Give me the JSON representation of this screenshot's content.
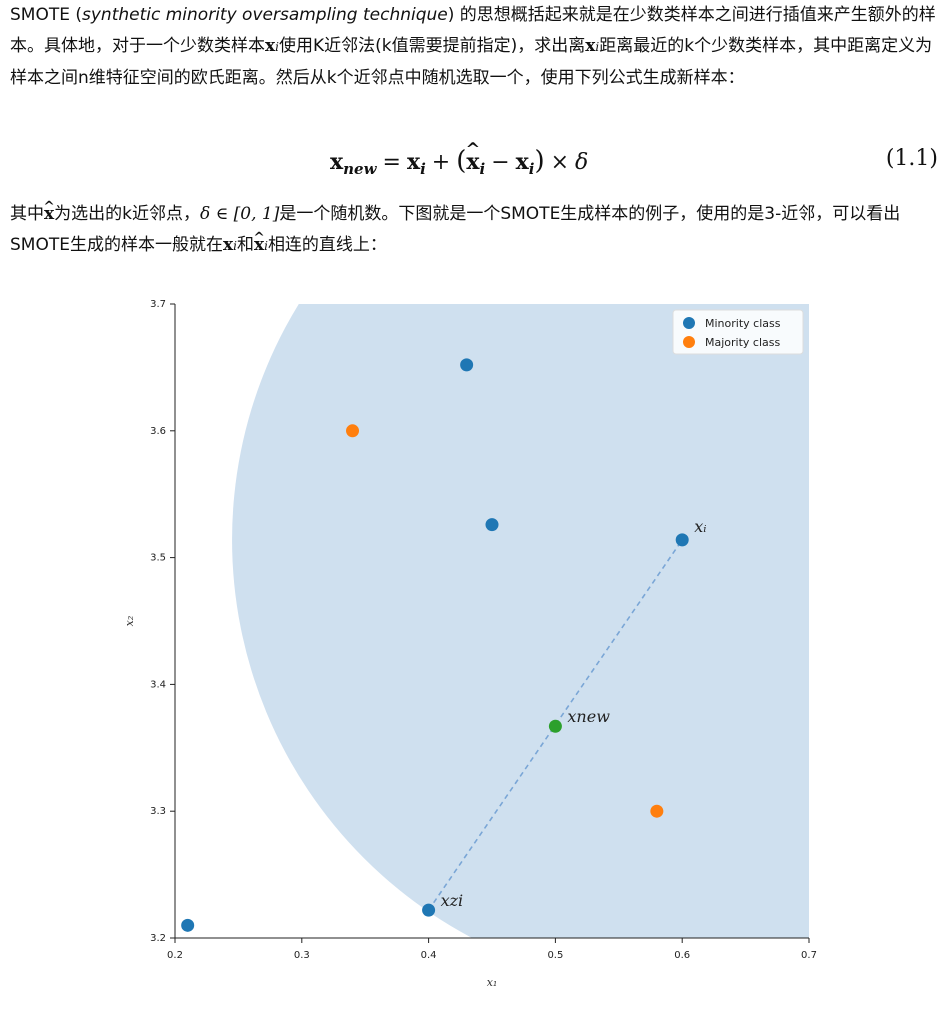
{
  "intro": {
    "t1": "SMOTE (",
    "t2": "synthetic minority oversampling technique",
    "t3": ") 的思想概括起来就是在少数类样本之间进行插值来产生额外的样本。具体地，对于一个少数类样本",
    "t4": "使用K近邻法(k值需要提前指定)，求出离",
    "t5": "距离最近的k个少数类样本，其中距离定义为样本之间n维特征空间的欧氏距离。然后从k个近邻点中随机选取一个，使用下列公式生成新样本："
  },
  "equation": {
    "number": "(1.1)"
  },
  "after": {
    "t1": "其中",
    "t2": "为选出的k近邻点，",
    "t3": "是一个随机数。下图就是一个SMOTE生成样本的例子，使用的是3-近邻，可以看出SMOTE生成的样本一般就在",
    "t4": "和",
    "t5": "相连的直线上："
  },
  "chart_data": {
    "type": "scatter",
    "xlabel": "x₁",
    "ylabel": "x₂",
    "xlim": [
      0.2,
      0.7
    ],
    "ylim": [
      3.2,
      3.7
    ],
    "xticks": [
      "0.2",
      "0.3",
      "0.4",
      "0.5",
      "0.6",
      "0.7"
    ],
    "yticks": [
      "3.2",
      "3.3",
      "3.4",
      "3.5",
      "3.6",
      "3.7"
    ],
    "legend_position": "top-right",
    "series": [
      {
        "name": "Minority class",
        "color": "#1f77b4",
        "points": [
          [
            0.21,
            3.21
          ],
          [
            0.43,
            3.652
          ],
          [
            0.45,
            3.526
          ],
          [
            0.6,
            3.514
          ],
          [
            0.4,
            3.222
          ]
        ]
      },
      {
        "name": "Majority class",
        "color": "#ff7f0e",
        "points": [
          [
            0.34,
            3.6
          ],
          [
            0.58,
            3.3
          ]
        ]
      }
    ],
    "new_point": {
      "x": 0.5,
      "y": 3.367,
      "color": "#2ca02c"
    },
    "segment": [
      [
        0.4,
        3.222
      ],
      [
        0.6,
        3.514
      ]
    ],
    "region": {
      "center": [
        0.6,
        3.514
      ],
      "radius": 0.355,
      "color": "#cfe0ef"
    },
    "annotations": [
      {
        "text": "xᵢ",
        "x": 0.6,
        "y": 3.514
      },
      {
        "text": "xnew",
        "x": 0.5,
        "y": 3.367
      },
      {
        "text": "xzi",
        "x": 0.4,
        "y": 3.222
      }
    ]
  }
}
